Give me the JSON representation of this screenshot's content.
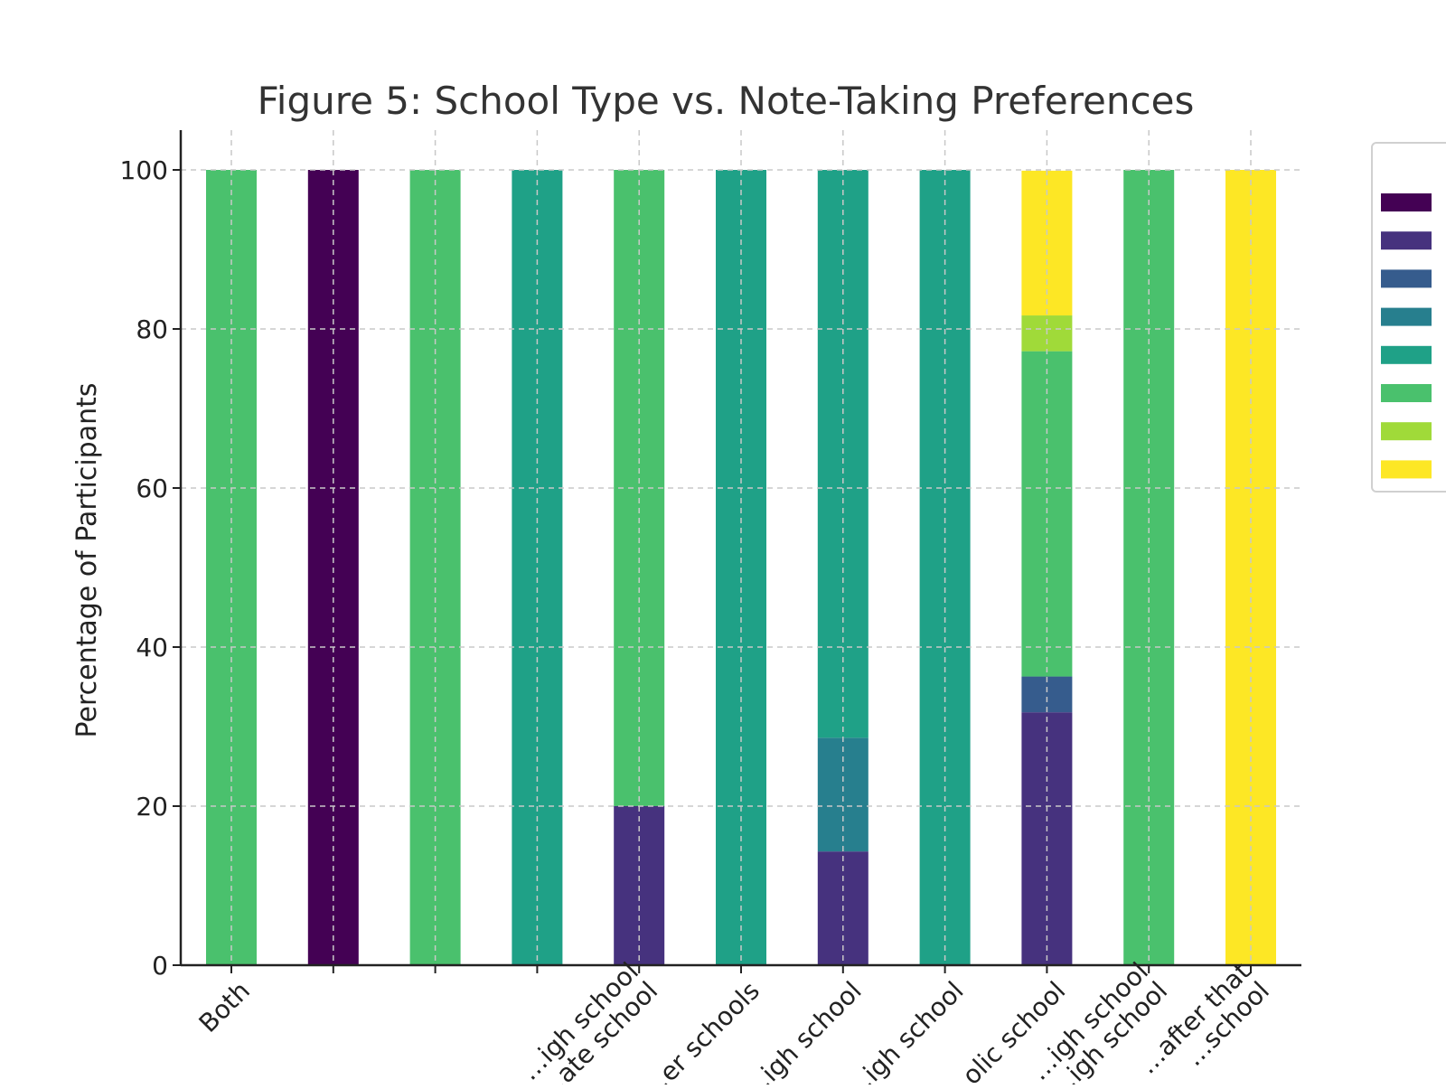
{
  "chart_data": {
    "type": "bar",
    "stacked": true,
    "title": "Figure 5: School Type vs. Note-Taking Preferences",
    "xlabel": "",
    "ylabel": "Percentage of Participants",
    "ylim": [
      0,
      105
    ],
    "yticks": [
      0,
      20,
      40,
      60,
      80,
      100
    ],
    "grid": true,
    "legend_position": "right",
    "categories": [
      "Both",
      "",
      "",
      "",
      "…igh school\n…ate school",
      "…er schools",
      "…igh school",
      "…igh school",
      "…olic school",
      "…igh school\n…igh school",
      "…after that\n…school"
    ],
    "series": [
      {
        "color": "#440154",
        "values": [
          0,
          100,
          0,
          0,
          0,
          0,
          0,
          0,
          0,
          0,
          0
        ]
      },
      {
        "color": "#46327e",
        "values": [
          0,
          0,
          0,
          0,
          20,
          0,
          14.3,
          0,
          31.8,
          0,
          0
        ]
      },
      {
        "color": "#365c8d",
        "values": [
          0,
          0,
          0,
          0,
          0,
          0,
          0,
          0,
          4.5,
          0,
          0
        ]
      },
      {
        "color": "#277f8e",
        "values": [
          0,
          0,
          0,
          0,
          0,
          0,
          14.3,
          0,
          0,
          0,
          0
        ]
      },
      {
        "color": "#1fa187",
        "values": [
          0,
          0,
          0,
          100,
          0,
          100,
          71.4,
          100,
          0,
          0,
          0
        ]
      },
      {
        "color": "#4ac16d",
        "values": [
          100,
          0,
          100,
          0,
          80,
          0,
          0,
          0,
          40.9,
          100,
          0
        ]
      },
      {
        "color": "#a0da39",
        "values": [
          0,
          0,
          0,
          0,
          0,
          0,
          0,
          0,
          4.5,
          0,
          0
        ]
      },
      {
        "color": "#fde725",
        "values": [
          0,
          0,
          0,
          0,
          0,
          0,
          0,
          0,
          18.2,
          0,
          100
        ]
      }
    ]
  }
}
